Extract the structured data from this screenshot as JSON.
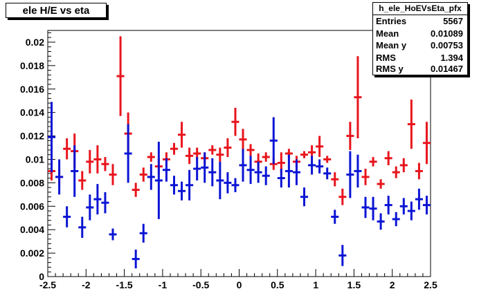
{
  "title": "ele H/E vs eta",
  "stats": {
    "name": "h_ele_HoEVsEta_pfx",
    "rows": [
      {
        "label": "Entries",
        "value": "5567"
      },
      {
        "label": "Mean",
        "value": "0.01089"
      },
      {
        "label": "Mean y",
        "value": "0.00753"
      },
      {
        "label": "RMS",
        "value": "1.394"
      },
      {
        "label": "RMS y",
        "value": "0.01467"
      }
    ]
  },
  "chart_data": {
    "type": "scatter",
    "title": "ele H/E vs eta",
    "xlabel": "",
    "ylabel": "",
    "xlim": [
      -2.5,
      2.5
    ],
    "ylim": [
      0,
      0.021
    ],
    "grid": false,
    "x_ticks": [
      "-2.5",
      "-2",
      "-1.5",
      "-1",
      "-0.5",
      "0",
      "0.5",
      "1",
      "1.5",
      "2",
      "2.5"
    ],
    "y_ticks": [
      "0",
      "0.002",
      "0.004",
      "0.006",
      "0.008",
      "0.01",
      "0.012",
      "0.014",
      "0.016",
      "0.018",
      "0.02"
    ],
    "colors": {
      "red": "#e8141c",
      "blue": "#0a14d4"
    },
    "series": [
      {
        "color": "#e8141c",
        "points": [
          {
            "x": -2.45,
            "y": 0.009,
            "err": 0.0008
          },
          {
            "x": -2.35,
            "y": 0.0085,
            "err": 0.0007
          },
          {
            "x": -2.25,
            "y": 0.0109,
            "err": 0.0009
          },
          {
            "x": -2.15,
            "y": 0.0107,
            "err": 0.0015
          },
          {
            "x": -2.05,
            "y": 0.0082,
            "err": 0.0008
          },
          {
            "x": -1.95,
            "y": 0.0098,
            "err": 0.001
          },
          {
            "x": -1.85,
            "y": 0.01,
            "err": 0.0012
          },
          {
            "x": -1.75,
            "y": 0.0096,
            "err": 0.0006
          },
          {
            "x": -1.65,
            "y": 0.0087,
            "err": 0.0009
          },
          {
            "x": -1.55,
            "y": 0.0171,
            "err": 0.0034
          },
          {
            "x": -1.45,
            "y": 0.0122,
            "err": 0.0018
          },
          {
            "x": -1.35,
            "y": 0.0074,
            "err": 0.0006
          },
          {
            "x": -1.25,
            "y": 0.0087,
            "err": 0.0006
          },
          {
            "x": -1.15,
            "y": 0.0102,
            "err": 0.0004
          },
          {
            "x": -1.05,
            "y": 0.0094,
            "err": 0.0007
          },
          {
            "x": -0.95,
            "y": 0.01,
            "err": 0.0006
          },
          {
            "x": -0.85,
            "y": 0.0109,
            "err": 0.0005
          },
          {
            "x": -0.75,
            "y": 0.0121,
            "err": 0.0011
          },
          {
            "x": -0.65,
            "y": 0.0103,
            "err": 0.0007
          },
          {
            "x": -0.55,
            "y": 0.0105,
            "err": 0.0005
          },
          {
            "x": -0.45,
            "y": 0.0101,
            "err": 0.0005
          },
          {
            "x": -0.35,
            "y": 0.0108,
            "err": 0.0004
          },
          {
            "x": -0.25,
            "y": 0.0104,
            "err": 0.0006
          },
          {
            "x": -0.15,
            "y": 0.011,
            "err": 0.0008
          },
          {
            "x": -0.05,
            "y": 0.0132,
            "err": 0.0012
          },
          {
            "x": 0.05,
            "y": 0.0117,
            "err": 0.0009
          },
          {
            "x": 0.15,
            "y": 0.0108,
            "err": 0.0005
          },
          {
            "x": 0.25,
            "y": 0.0098,
            "err": 0.0007
          },
          {
            "x": 0.35,
            "y": 0.0102,
            "err": 0.0004
          },
          {
            "x": 0.45,
            "y": 0.0096,
            "err": 0.0005
          },
          {
            "x": 0.55,
            "y": 0.0097,
            "err": 0.0009
          },
          {
            "x": 0.65,
            "y": 0.0105,
            "err": 0.0004
          },
          {
            "x": 0.75,
            "y": 0.0098,
            "err": 0.0005
          },
          {
            "x": 0.85,
            "y": 0.0104,
            "err": 0.0003
          },
          {
            "x": 0.95,
            "y": 0.0106,
            "err": 0.0006
          },
          {
            "x": 1.05,
            "y": 0.0111,
            "err": 0.0009
          },
          {
            "x": 1.15,
            "y": 0.01,
            "err": 0.0003
          },
          {
            "x": 1.25,
            "y": 0.0083,
            "err": 0.0006
          },
          {
            "x": 1.35,
            "y": 0.0068,
            "err": 0.0007
          },
          {
            "x": 1.45,
            "y": 0.012,
            "err": 0.0012
          },
          {
            "x": 1.55,
            "y": 0.0153,
            "err": 0.0035
          },
          {
            "x": 1.65,
            "y": 0.0085,
            "err": 0.0007
          },
          {
            "x": 1.75,
            "y": 0.0098,
            "err": 0.0004
          },
          {
            "x": 1.85,
            "y": 0.0079,
            "err": 0.0004
          },
          {
            "x": 1.95,
            "y": 0.0101,
            "err": 0.0006
          },
          {
            "x": 2.05,
            "y": 0.0089,
            "err": 0.0005
          },
          {
            "x": 2.15,
            "y": 0.0095,
            "err": 0.0006
          },
          {
            "x": 2.25,
            "y": 0.013,
            "err": 0.0021
          },
          {
            "x": 2.35,
            "y": 0.009,
            "err": 0.0007
          },
          {
            "x": 2.45,
            "y": 0.0114,
            "err": 0.0018
          }
        ]
      },
      {
        "color": "#0a14d4",
        "points": [
          {
            "x": -2.45,
            "y": 0.0119,
            "err": 0.003
          },
          {
            "x": -2.35,
            "y": 0.0085,
            "err": 0.0015
          },
          {
            "x": -2.25,
            "y": 0.0051,
            "err": 0.0009
          },
          {
            "x": -2.15,
            "y": 0.009,
            "err": 0.0022
          },
          {
            "x": -2.05,
            "y": 0.0042,
            "err": 0.0009
          },
          {
            "x": -1.95,
            "y": 0.0059,
            "err": 0.0011
          },
          {
            "x": -1.85,
            "y": 0.0066,
            "err": 0.0013
          },
          {
            "x": -1.75,
            "y": 0.0063,
            "err": 0.0009
          },
          {
            "x": -1.65,
            "y": 0.0036,
            "err": 0.0005
          },
          {
            "x": -1.45,
            "y": 0.0105,
            "err": 0.0025
          },
          {
            "x": -1.35,
            "y": 0.0015,
            "err": 0.0008
          },
          {
            "x": -1.25,
            "y": 0.0037,
            "err": 0.0008
          },
          {
            "x": -1.15,
            "y": 0.0085,
            "err": 0.0011
          },
          {
            "x": -1.05,
            "y": 0.0082,
            "err": 0.0033
          },
          {
            "x": -0.95,
            "y": 0.0091,
            "err": 0.001
          },
          {
            "x": -0.85,
            "y": 0.0078,
            "err": 0.0008
          },
          {
            "x": -0.75,
            "y": 0.0073,
            "err": 0.0008
          },
          {
            "x": -0.65,
            "y": 0.0078,
            "err": 0.0013
          },
          {
            "x": -0.55,
            "y": 0.0092,
            "err": 0.001
          },
          {
            "x": -0.45,
            "y": 0.0093,
            "err": 0.0013
          },
          {
            "x": -0.35,
            "y": 0.0089,
            "err": 0.0012
          },
          {
            "x": -0.25,
            "y": 0.0082,
            "err": 0.0016
          },
          {
            "x": -0.15,
            "y": 0.008,
            "err": 0.0009
          },
          {
            "x": -0.05,
            "y": 0.0078,
            "err": 0.0006
          },
          {
            "x": 0.05,
            "y": 0.0095,
            "err": 0.0014
          },
          {
            "x": 0.15,
            "y": 0.0091,
            "err": 0.0012
          },
          {
            "x": 0.25,
            "y": 0.0089,
            "err": 0.0009
          },
          {
            "x": 0.35,
            "y": 0.0086,
            "err": 0.0008
          },
          {
            "x": 0.45,
            "y": 0.0116,
            "err": 0.002
          },
          {
            "x": 0.55,
            "y": 0.0084,
            "err": 0.0008
          },
          {
            "x": 0.65,
            "y": 0.009,
            "err": 0.0014
          },
          {
            "x": 0.75,
            "y": 0.0089,
            "err": 0.0011
          },
          {
            "x": 0.85,
            "y": 0.0068,
            "err": 0.0008
          },
          {
            "x": 0.95,
            "y": 0.0095,
            "err": 0.0008
          },
          {
            "x": 1.05,
            "y": 0.0094,
            "err": 0.0006
          },
          {
            "x": 1.15,
            "y": 0.0088,
            "err": 0.0005
          },
          {
            "x": 1.25,
            "y": 0.0051,
            "err": 0.0006
          },
          {
            "x": 1.35,
            "y": 0.0018,
            "err": 0.0009
          },
          {
            "x": 1.45,
            "y": 0.0087,
            "err": 0.002
          },
          {
            "x": 1.55,
            "y": 0.009,
            "err": 0.0014
          },
          {
            "x": 1.65,
            "y": 0.0059,
            "err": 0.0009
          },
          {
            "x": 1.75,
            "y": 0.0058,
            "err": 0.001
          },
          {
            "x": 1.85,
            "y": 0.0047,
            "err": 0.0007
          },
          {
            "x": 1.95,
            "y": 0.0061,
            "err": 0.0008
          },
          {
            "x": 2.05,
            "y": 0.0049,
            "err": 0.0006
          },
          {
            "x": 2.15,
            "y": 0.006,
            "err": 0.0007
          },
          {
            "x": 2.25,
            "y": 0.0056,
            "err": 0.0008
          },
          {
            "x": 2.35,
            "y": 0.0066,
            "err": 0.0009
          },
          {
            "x": 2.45,
            "y": 0.0061,
            "err": 0.0008
          }
        ]
      }
    ]
  }
}
